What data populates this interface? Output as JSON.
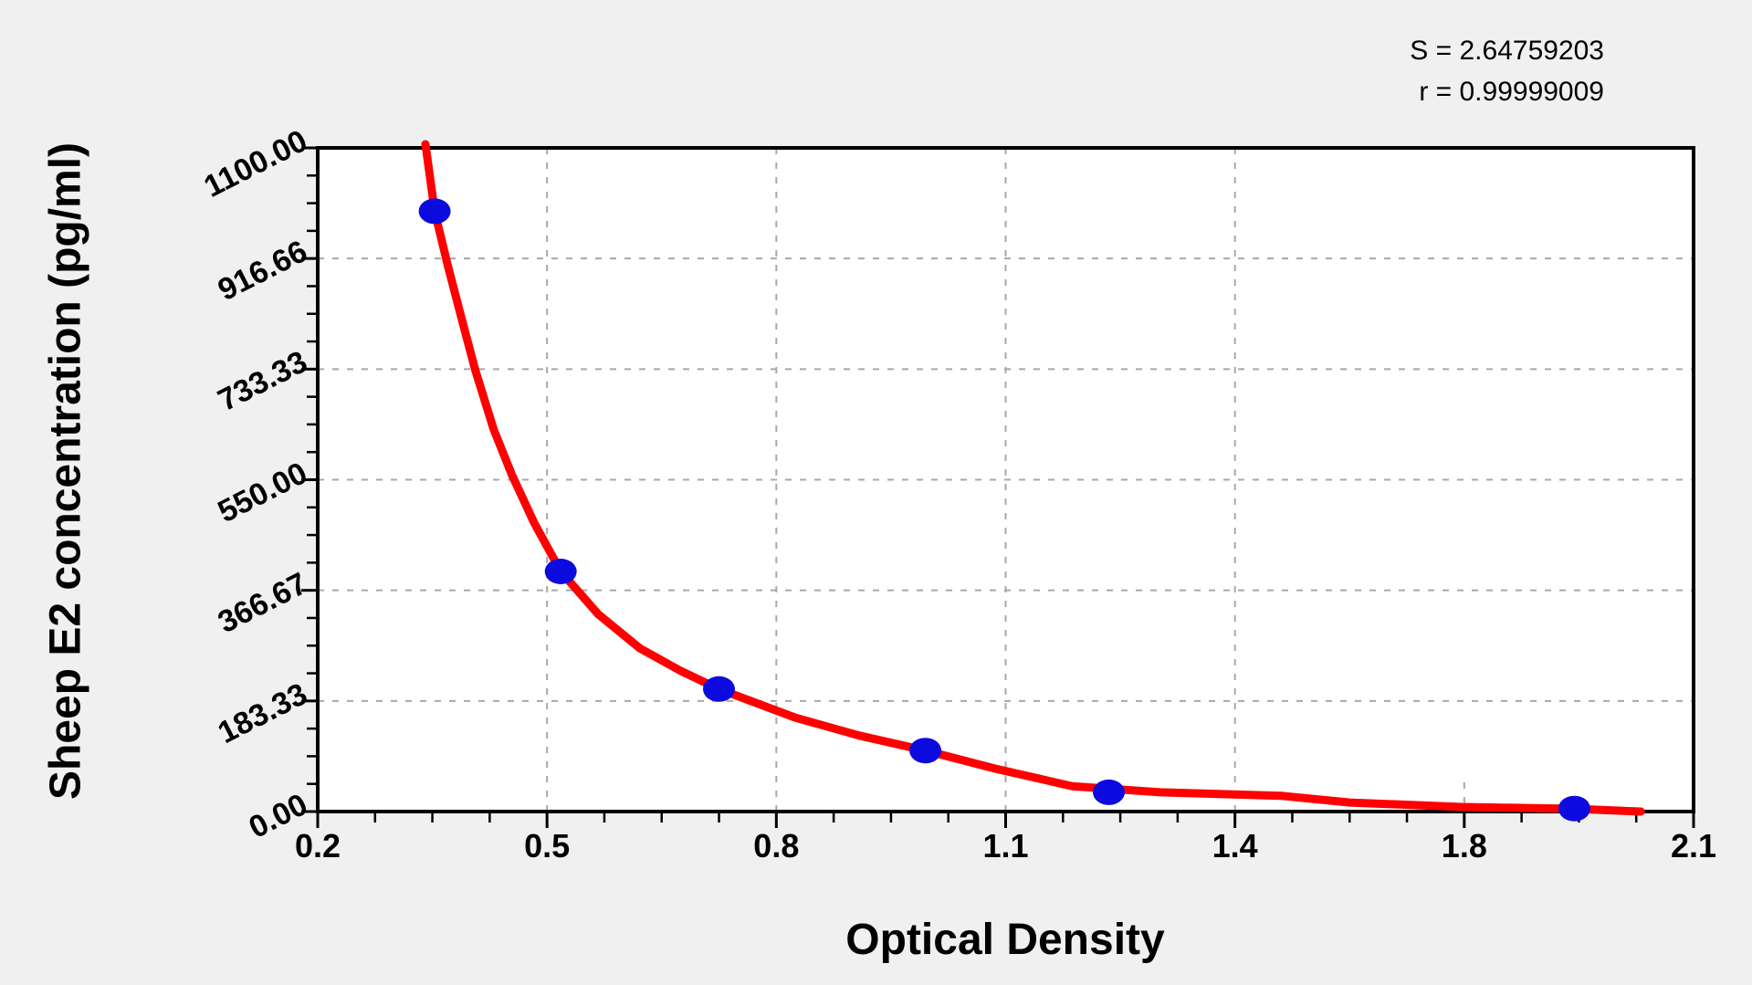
{
  "stats_text": {
    "s_line": "S = 2.64759203",
    "r_line": "r = 0.99999009"
  },
  "colors": {
    "background": "#f0f0f0",
    "plot_bg": "#ffffff",
    "axis": "#000000",
    "grid": "#a8a8a8",
    "curve": "#ff0000",
    "point": "#0b0bdf"
  },
  "chart_data": {
    "type": "scatter",
    "title": "",
    "xlabel": "Optical Density",
    "ylabel": "Sheep E2 concentration (pg/ml)",
    "x_tick_labels": [
      "0.2",
      "0.5",
      "0.8",
      "1.1",
      "1.4",
      "1.8",
      "2.1"
    ],
    "x_tick_values": [
      0.2,
      0.5,
      0.8,
      1.1,
      1.4,
      1.8,
      2.1
    ],
    "y_tick_labels": [
      "0.00",
      "183.33",
      "366.67",
      "550.00",
      "733.33",
      "916.66",
      "1100.00"
    ],
    "y_tick_values": [
      0,
      183.33,
      366.67,
      550,
      733.33,
      916.66,
      1100
    ],
    "ylim": [
      0,
      1100
    ],
    "grid": "dashed",
    "legend": "none",
    "fit_stats": {
      "S": "2.64759203",
      "r": "0.99999009"
    },
    "points": [
      {
        "od": 0.353,
        "conc": 995
      },
      {
        "od": 0.518,
        "conc": 398
      },
      {
        "od": 0.725,
        "conc": 203
      },
      {
        "od": 0.995,
        "conc": 101
      },
      {
        "od": 1.235,
        "conc": 32
      },
      {
        "od": 1.944,
        "conc": 5
      }
    ],
    "curve": [
      [
        0.341,
        1106
      ],
      [
        0.353,
        995
      ],
      [
        0.37,
        906
      ],
      [
        0.387,
        823
      ],
      [
        0.406,
        732
      ],
      [
        0.43,
        634
      ],
      [
        0.454,
        558
      ],
      [
        0.483,
        479
      ],
      [
        0.518,
        398
      ],
      [
        0.567,
        327
      ],
      [
        0.621,
        271
      ],
      [
        0.675,
        233
      ],
      [
        0.725,
        203
      ],
      [
        0.824,
        156
      ],
      [
        0.908,
        126
      ],
      [
        0.995,
        101
      ],
      [
        1.087,
        71
      ],
      [
        1.187,
        42
      ],
      [
        1.303,
        32
      ],
      [
        1.482,
        26
      ],
      [
        1.6,
        15
      ],
      [
        1.797,
        7.6
      ],
      [
        1.944,
        4.5
      ],
      [
        2.031,
        0
      ]
    ]
  }
}
